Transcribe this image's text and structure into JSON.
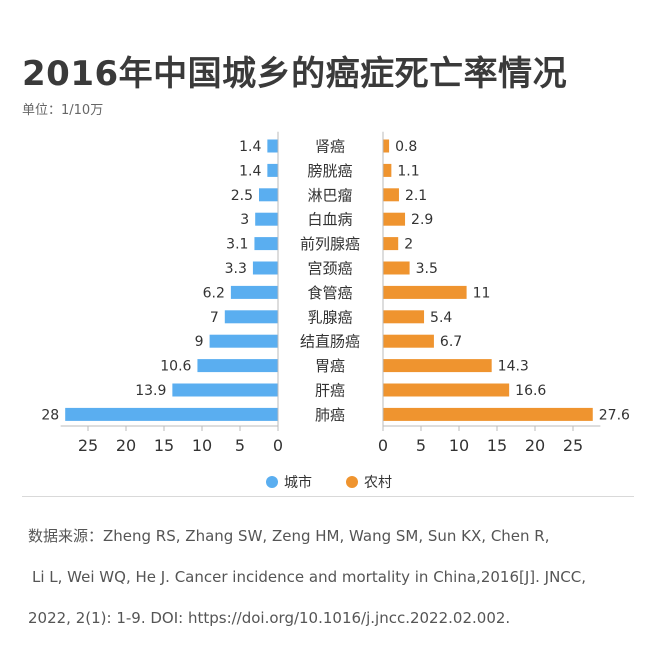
{
  "title": "2016年中国城乡的癌症死亡率情况",
  "unit_label": "单位：1/10万",
  "source": {
    "line1": "数据来源：Zheng RS, Zhang SW, Zeng HM, Wang SM, Sun KX, Chen R,",
    "line2": "Li L, Wei WQ, He J. Cancer incidence and mortality in China,2016[J]. JNCC,",
    "line3": "2022, 2(1): 1-9. DOI: https://doi.org/10.1016/j.jncc.2022.02.002."
  },
  "colors": {
    "urban": "#5aaef0",
    "rural": "#ef942f",
    "axis": "#bbbbbb",
    "text": "#333333"
  },
  "chart_data": {
    "type": "bar",
    "orientation": "horizontal-butterfly",
    "categories": [
      "肾癌",
      "膀胱癌",
      "淋巴瘤",
      "白血病",
      "前列腺癌",
      "宫颈癌",
      "食管癌",
      "乳腺癌",
      "结直肠癌",
      "胃癌",
      "肝癌",
      "肺癌"
    ],
    "series": [
      {
        "name": "城市",
        "side": "left",
        "values": [
          1.4,
          1.4,
          2.5,
          3,
          3.1,
          3.3,
          6.2,
          7,
          9,
          10.6,
          13.9,
          28
        ]
      },
      {
        "name": "农村",
        "side": "right",
        "values": [
          0.8,
          1.1,
          2.1,
          2.9,
          2,
          3.5,
          11,
          5.4,
          6.7,
          14.3,
          16.6,
          27.6
        ]
      }
    ],
    "xlim_left": [
      0,
      28
    ],
    "xlim_right": [
      0,
      28
    ],
    "ticks_left": [
      "25",
      "20",
      "15",
      "10",
      "5",
      "0"
    ],
    "ticks_right": [
      "0",
      "5",
      "10",
      "15",
      "20",
      "25"
    ],
    "tick_values": [
      25,
      20,
      15,
      10,
      5,
      0
    ],
    "legend_position": "bottom-center",
    "grid": false
  }
}
